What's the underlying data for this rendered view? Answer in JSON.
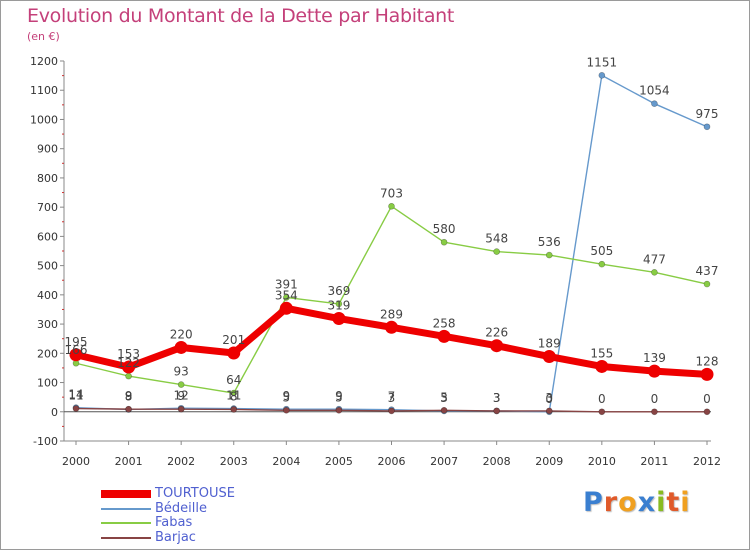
{
  "title": "Evolution du Montant de la Dette par Habitant",
  "subtitle": "(en €)",
  "chart_data": {
    "type": "line",
    "title": "Evolution du Montant de la Dette par Habitant",
    "ylabel": "(en €)",
    "xlabel": "",
    "categories": [
      "2000",
      "2001",
      "2002",
      "2003",
      "2004",
      "2005",
      "2006",
      "2007",
      "2008",
      "2009",
      "2010",
      "2011",
      "2012"
    ],
    "ylim": [
      -100,
      1200
    ],
    "yticks": [
      -100,
      0,
      100,
      200,
      300,
      400,
      500,
      600,
      700,
      800,
      900,
      1000,
      1100,
      1200
    ],
    "grid": false,
    "legend": "bottom-left",
    "series": [
      {
        "name": "TOURTOUSE",
        "color": "#ee0000",
        "values": [
          195,
          153,
          220,
          201,
          354,
          319,
          289,
          258,
          226,
          189,
          155,
          139,
          128
        ],
        "labels": [
          "195",
          "153",
          "220",
          "201",
          "354",
          "319",
          "289",
          "258",
          "226",
          "189",
          "155",
          "139",
          "128"
        ]
      },
      {
        "name": "Bédeille",
        "color": "#6699cc",
        "values": [
          14,
          8,
          12,
          11,
          9,
          9,
          7,
          3,
          3,
          0,
          1151,
          1054,
          975
        ],
        "labels": [
          "14",
          "8",
          "12",
          "11",
          "9",
          "9",
          "7",
          "3",
          "3",
          "0",
          "1151",
          "1054",
          "975"
        ]
      },
      {
        "name": "Fabas",
        "color": "#88cc44",
        "values": [
          166,
          122,
          93,
          64,
          391,
          369,
          703,
          580,
          548,
          536,
          505,
          477,
          437
        ],
        "labels": [
          "166",
          "122",
          "93",
          "64",
          "391",
          "369",
          "703",
          "580",
          "548",
          "536",
          "505",
          "477",
          "437"
        ]
      },
      {
        "name": "Barjac",
        "color": "#884444",
        "values": [
          11,
          9,
          9,
          8,
          5,
          5,
          3,
          5,
          3,
          3,
          0,
          0,
          0
        ],
        "labels": [
          "11",
          "9",
          "9",
          "8",
          "5",
          "5",
          "3",
          "5",
          "3",
          "3",
          "0",
          "0",
          "0"
        ]
      }
    ]
  },
  "logo": {
    "text": "Proxiti"
  }
}
